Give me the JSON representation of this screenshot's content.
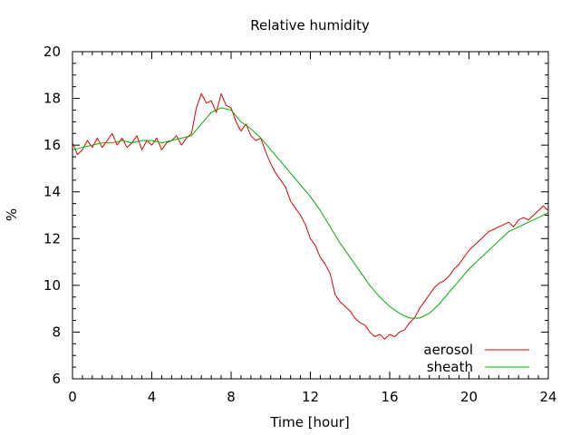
{
  "chart_data": {
    "type": "line",
    "title": "Relative humidity",
    "xlabel": "Time [hour]",
    "ylabel": "%",
    "xlim": [
      0,
      24
    ],
    "ylim": [
      6,
      20
    ],
    "xticks": [
      0,
      4,
      8,
      12,
      16,
      20,
      24
    ],
    "yticks": [
      6,
      8,
      10,
      12,
      14,
      16,
      18,
      20
    ],
    "grid": false,
    "legend_position": "bottom-right",
    "series": [
      {
        "name": "aerosol",
        "color": "#e00000",
        "x": [
          0,
          0.25,
          0.5,
          0.75,
          1,
          1.25,
          1.5,
          1.75,
          2,
          2.25,
          2.5,
          2.75,
          3,
          3.25,
          3.5,
          3.75,
          4,
          4.25,
          4.5,
          4.75,
          5,
          5.25,
          5.5,
          5.75,
          6,
          6.25,
          6.5,
          6.75,
          7,
          7.25,
          7.5,
          7.75,
          8,
          8.25,
          8.5,
          8.75,
          9,
          9.25,
          9.5,
          9.75,
          10,
          10.25,
          10.5,
          10.75,
          11,
          11.25,
          11.5,
          11.75,
          12,
          12.25,
          12.5,
          12.75,
          13,
          13.25,
          13.5,
          13.75,
          14,
          14.25,
          14.5,
          14.75,
          15,
          15.25,
          15.5,
          15.75,
          16,
          16.25,
          16.5,
          16.75,
          17,
          17.25,
          17.5,
          17.75,
          18,
          18.25,
          18.5,
          18.75,
          19,
          19.25,
          19.5,
          19.75,
          20,
          20.25,
          20.5,
          20.75,
          21,
          21.25,
          21.5,
          21.75,
          22,
          22.25,
          22.5,
          22.75,
          23,
          23.25,
          23.5,
          23.75,
          24
        ],
        "y": [
          16.1,
          15.6,
          15.8,
          16.2,
          15.9,
          16.3,
          15.9,
          16.2,
          16.5,
          16.0,
          16.3,
          15.9,
          16.1,
          16.4,
          15.8,
          16.2,
          16.0,
          16.3,
          15.8,
          16.1,
          16.2,
          16.4,
          16.0,
          16.3,
          16.5,
          17.6,
          18.2,
          17.8,
          17.9,
          17.4,
          18.2,
          17.7,
          17.6,
          17.0,
          16.6,
          16.9,
          16.4,
          16.2,
          16.3,
          15.7,
          15.2,
          14.8,
          14.5,
          14.2,
          13.6,
          13.3,
          13.0,
          12.6,
          12.0,
          11.7,
          11.2,
          10.9,
          10.5,
          9.6,
          9.3,
          9.1,
          8.9,
          8.6,
          8.4,
          8.3,
          8.0,
          7.8,
          7.9,
          7.7,
          7.9,
          7.8,
          8.0,
          8.1,
          8.4,
          8.6,
          9.0,
          9.3,
          9.6,
          9.9,
          10.1,
          10.2,
          10.4,
          10.7,
          10.9,
          11.2,
          11.5,
          11.7,
          11.9,
          12.1,
          12.3,
          12.4,
          12.5,
          12.6,
          12.7,
          12.5,
          12.8,
          12.9,
          12.8,
          13.0,
          13.2,
          13.4,
          13.2
        ]
      },
      {
        "name": "sheath",
        "color": "#00b000",
        "x": [
          0,
          0.5,
          1,
          1.5,
          2,
          2.5,
          3,
          3.5,
          4,
          4.5,
          5,
          5.5,
          6,
          6.5,
          7,
          7.5,
          8,
          8.5,
          9,
          9.5,
          10,
          10.5,
          11,
          11.5,
          12,
          12.5,
          13,
          13.5,
          14,
          14.5,
          15,
          15.5,
          16,
          16.5,
          17,
          17.5,
          18,
          18.5,
          19,
          19.5,
          20,
          20.5,
          21,
          21.5,
          22,
          22.5,
          23,
          23.5,
          24
        ],
        "y": [
          15.8,
          15.9,
          16.0,
          16.1,
          16.1,
          16.2,
          16.1,
          16.2,
          16.2,
          16.1,
          16.2,
          16.3,
          16.4,
          16.9,
          17.4,
          17.6,
          17.5,
          17.0,
          16.7,
          16.3,
          15.8,
          15.3,
          14.8,
          14.3,
          13.8,
          13.2,
          12.5,
          11.8,
          11.2,
          10.6,
          10.0,
          9.5,
          9.1,
          8.8,
          8.6,
          8.6,
          8.8,
          9.2,
          9.7,
          10.2,
          10.7,
          11.1,
          11.5,
          11.9,
          12.3,
          12.5,
          12.7,
          12.9,
          13.1
        ]
      }
    ]
  }
}
